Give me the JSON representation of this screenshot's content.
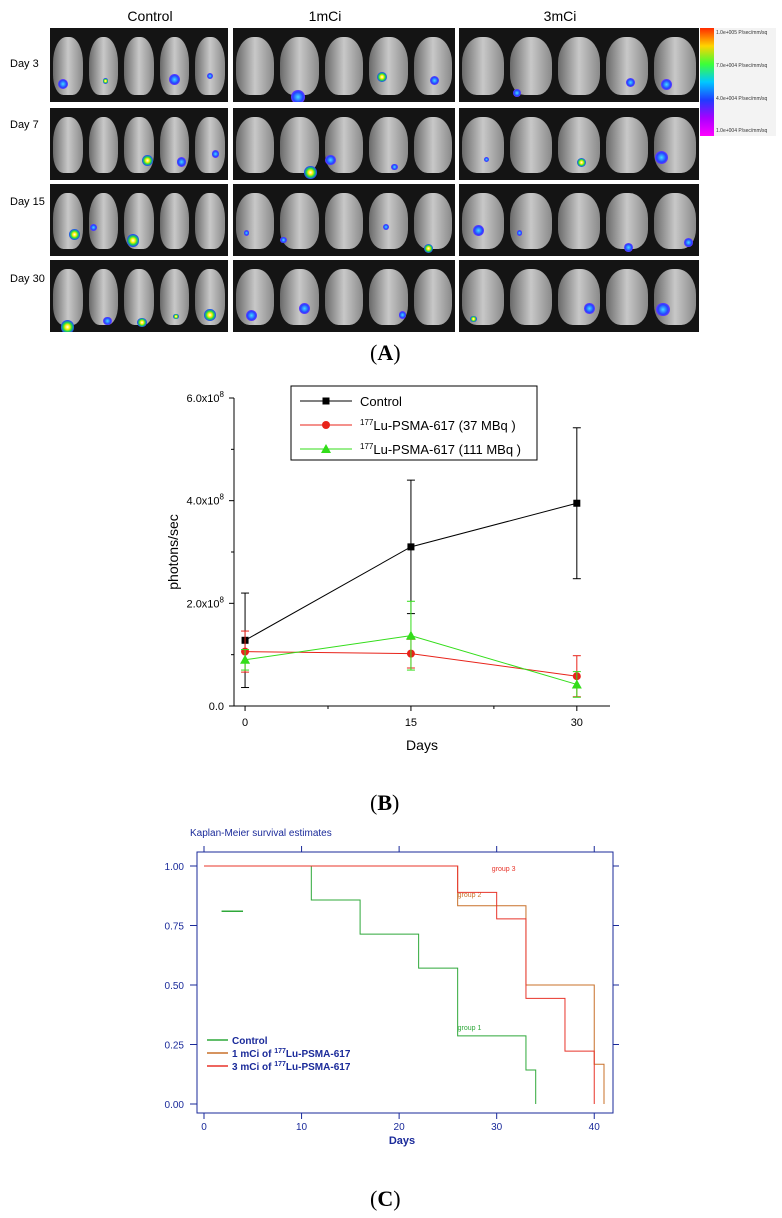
{
  "panel_a": {
    "label": "A",
    "columns": [
      "Control",
      "1mCi",
      "3mCi"
    ],
    "rows": [
      "Day 3",
      "Day 7",
      "Day 15",
      "Day 30"
    ],
    "scale_labels": [
      "1.0e+005 P/sec/mm/sq",
      "7.0e+004 P/sec/mm/sq",
      "4.0e+004 P/sec/mm/sq",
      "1.0e+004 P/sec/mm/sq"
    ]
  },
  "panel_b_label": "B",
  "panel_c_label": "C",
  "chart_data": [
    {
      "type": "line",
      "title": "",
      "xlabel": "Days",
      "ylabel": "photons/sec",
      "x": [
        0,
        15,
        30
      ],
      "xticks": [
        "0",
        "15",
        "30"
      ],
      "yticks": [
        "0.0",
        "2.0x10^8",
        "4.0x10^8",
        "6.0x10^8"
      ],
      "xlim": [
        -1,
        33
      ],
      "ylim": [
        0,
        600000000
      ],
      "legend_position": "top",
      "series": [
        {
          "name": "Control",
          "color": "#000000",
          "marker": "square",
          "values": [
            128000000,
            310000000,
            395000000
          ],
          "error": [
            92000000,
            130000000,
            147000000
          ]
        },
        {
          "name": "177Lu-PSMA-617 (37 MBq )",
          "name_sup": "177",
          "name_rest": "Lu-PSMA-617 (37 MBq )",
          "color": "#e8231a",
          "marker": "circle",
          "values": [
            106000000,
            102000000,
            58000000
          ],
          "error": [
            40000000,
            28000000,
            40000000
          ]
        },
        {
          "name": "177Lu-PSMA-617 (111 MBq )",
          "name_sup": "177",
          "name_rest": "Lu-PSMA-617 (111 MBq )",
          "color": "#33dd1a",
          "marker": "triangle",
          "values": [
            90000000,
            137000000,
            42000000
          ],
          "error": [
            20000000,
            67000000,
            25000000
          ]
        }
      ]
    },
    {
      "type": "line",
      "title": "Kaplan-Meier survival estimates",
      "xlabel": "Days",
      "ylabel": "",
      "xticks": [
        "0",
        "10",
        "20",
        "30",
        "40"
      ],
      "yticks": [
        "0.00",
        "0.25",
        "0.50",
        "0.75",
        "1.00"
      ],
      "xlim": [
        0,
        41
      ],
      "ylim": [
        0,
        1
      ],
      "legend_position": "bottom-left",
      "series": [
        {
          "name": "Control",
          "curve_label": "group 1",
          "color": "#2fa83a",
          "steps": [
            [
              0,
              1.0
            ],
            [
              11,
              1.0
            ],
            [
              11,
              0.857
            ],
            [
              16,
              0.857
            ],
            [
              16,
              0.714
            ],
            [
              22,
              0.714
            ],
            [
              22,
              0.571
            ],
            [
              26,
              0.571
            ],
            [
              26,
              0.286
            ],
            [
              33,
              0.286
            ],
            [
              33,
              0.143
            ],
            [
              34,
              0.143
            ],
            [
              34,
              0.0
            ]
          ]
        },
        {
          "name": "1 mCi of 177Lu-PSMA-617",
          "name_pre": "1 mCi of ",
          "name_sup": "177",
          "name_rest": "Lu-PSMA-617",
          "curve_label": "group 2",
          "color": "#c8702a",
          "steps": [
            [
              0,
              1.0
            ],
            [
              26,
              1.0
            ],
            [
              26,
              0.833
            ],
            [
              33,
              0.833
            ],
            [
              33,
              0.5
            ],
            [
              40,
              0.5
            ],
            [
              40,
              0.167
            ],
            [
              41,
              0.167
            ],
            [
              41,
              0.0
            ]
          ]
        },
        {
          "name": "3 mCi of 177Lu-PSMA-617",
          "name_pre": "3 mCi of ",
          "name_sup": "177",
          "name_rest": "Lu-PSMA-617",
          "curve_label": "group 3",
          "color": "#e8342a",
          "steps": [
            [
              0,
              1.0
            ],
            [
              26,
              1.0
            ],
            [
              26,
              0.889
            ],
            [
              30,
              0.889
            ],
            [
              30,
              0.778
            ],
            [
              33,
              0.778
            ],
            [
              33,
              0.444
            ],
            [
              37,
              0.444
            ],
            [
              37,
              0.222
            ],
            [
              40,
              0.222
            ],
            [
              40,
              0.0
            ]
          ]
        }
      ]
    }
  ]
}
